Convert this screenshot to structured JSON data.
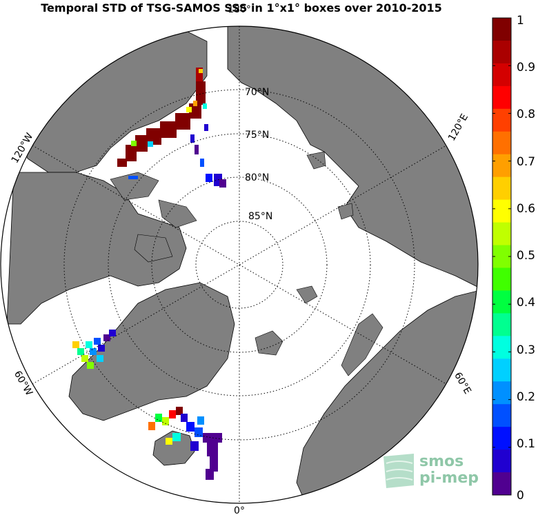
{
  "title": "Temporal STD of TSG-SAMOS SSS in 1°x1° boxes over 2010-2015",
  "map": {
    "projection": "north-polar-stereographic",
    "lat_labels": [
      "70°N",
      "75°N",
      "80°N",
      "85°N"
    ],
    "lon_labels": {
      "top": "180°",
      "bottom": "0°",
      "upper_left": "120°W",
      "upper_right": "120°E",
      "lower_left": "60°W",
      "lower_right": "60°E"
    },
    "colors": {
      "land": "#808080",
      "ocean": "#ffffff",
      "grid": "#000000"
    }
  },
  "colorbar": {
    "min": 0,
    "max": 1,
    "step": 0.05,
    "tick_labels": [
      "1",
      "0.9",
      "0.8",
      "0.7",
      "0.6",
      "0.5",
      "0.4",
      "0.3",
      "0.2",
      "0.1",
      "0"
    ],
    "colors": [
      "#800000",
      "#aa0000",
      "#d40000",
      "#ff0000",
      "#ff4000",
      "#ff7000",
      "#ff9f00",
      "#ffcf00",
      "#ffff00",
      "#c0ff00",
      "#80ff00",
      "#40ff00",
      "#00ff40",
      "#00ff90",
      "#00ffe0",
      "#00d0ff",
      "#0090ff",
      "#0050ff",
      "#0010ff",
      "#2000d0",
      "#500090"
    ]
  },
  "logo": {
    "line1": "smos",
    "line2": "pi-mep"
  }
}
